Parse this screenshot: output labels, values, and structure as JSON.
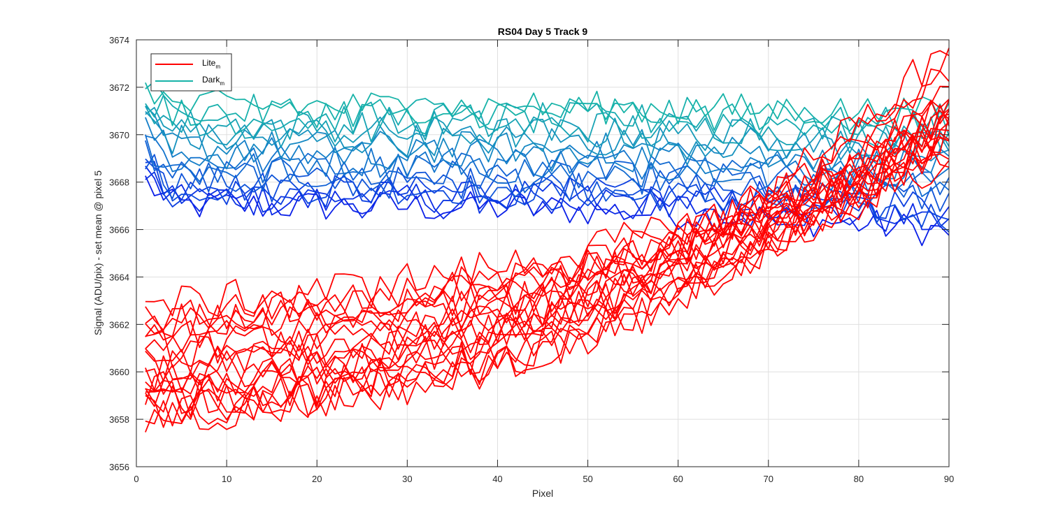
{
  "chart_data": {
    "type": "line",
    "title": "RS04 Day 5 Track 9",
    "xlabel": "Pixel",
    "ylabel": "Signal (ADU/pix) - set mean @ pixel 5",
    "xlim": [
      0,
      90
    ],
    "ylim": [
      3656,
      3674
    ],
    "xticks": [
      0,
      10,
      20,
      30,
      40,
      50,
      60,
      70,
      80,
      90
    ],
    "yticks": [
      3656,
      3658,
      3660,
      3662,
      3664,
      3666,
      3668,
      3670,
      3672,
      3674
    ],
    "grid": true,
    "legend_position": "top-left",
    "legend": [
      {
        "name": "Lite",
        "subscript": "m",
        "color": "#ff0000"
      },
      {
        "name": "Dark",
        "subscript": "m",
        "color": "#17b3a8"
      }
    ],
    "x_range": [
      1,
      90
    ],
    "lite_series": [
      {
        "start": 3658.0,
        "end": 3670.5
      },
      {
        "start": 3658.3,
        "end": 3671.0
      },
      {
        "start": 3658.6,
        "end": 3671.6
      },
      {
        "start": 3658.9,
        "end": 3672.1
      },
      {
        "start": 3659.2,
        "end": 3672.7
      },
      {
        "start": 3659.5,
        "end": 3673.2
      },
      {
        "start": 3659.8,
        "end": 3673.8
      },
      {
        "start": 3658.2,
        "end": 3669.9
      },
      {
        "start": 3658.7,
        "end": 3670.3
      },
      {
        "start": 3659.4,
        "end": 3670.8
      },
      {
        "start": 3660.0,
        "end": 3669.5
      },
      {
        "start": 3660.3,
        "end": 3669.8
      },
      {
        "start": 3660.6,
        "end": 3670.1
      },
      {
        "start": 3660.9,
        "end": 3670.4
      },
      {
        "start": 3661.2,
        "end": 3670.7
      },
      {
        "start": 3661.5,
        "end": 3671.0
      },
      {
        "start": 3661.8,
        "end": 3671.3
      },
      {
        "start": 3662.1,
        "end": 3669.2
      },
      {
        "start": 3662.4,
        "end": 3668.8
      },
      {
        "start": 3662.8,
        "end": 3670.0
      }
    ],
    "dark_series": [
      {
        "level": 3667.0,
        "end": 3665.9,
        "color": "#0a1fe8"
      },
      {
        "level": 3667.2,
        "end": 3666.3,
        "color": "#0b2ae6"
      },
      {
        "level": 3667.4,
        "end": 3666.7,
        "color": "#0c35e3"
      },
      {
        "level": 3667.6,
        "end": 3667.0,
        "color": "#0d40e0"
      },
      {
        "level": 3667.8,
        "end": 3666.5,
        "color": "#0e4bdd"
      },
      {
        "level": 3668.0,
        "end": 3667.3,
        "color": "#1055d9"
      },
      {
        "level": 3668.3,
        "end": 3667.8,
        "color": "#1160d5"
      },
      {
        "level": 3668.6,
        "end": 3668.0,
        "color": "#126ad1"
      },
      {
        "level": 3668.9,
        "end": 3668.4,
        "color": "#1374cd"
      },
      {
        "level": 3669.2,
        "end": 3668.7,
        "color": "#147ec8"
      },
      {
        "level": 3669.5,
        "end": 3669.0,
        "color": "#1588c3"
      },
      {
        "level": 3669.8,
        "end": 3669.4,
        "color": "#1692be"
      },
      {
        "level": 3670.1,
        "end": 3669.8,
        "color": "#179bb9"
      },
      {
        "level": 3670.4,
        "end": 3670.1,
        "color": "#17a3b4"
      },
      {
        "level": 3670.7,
        "end": 3670.4,
        "color": "#17aab0"
      },
      {
        "level": 3671.0,
        "end": 3670.6,
        "color": "#17b0ac"
      },
      {
        "level": 3671.2,
        "end": 3670.9,
        "color": "#17b3a8"
      }
    ]
  }
}
